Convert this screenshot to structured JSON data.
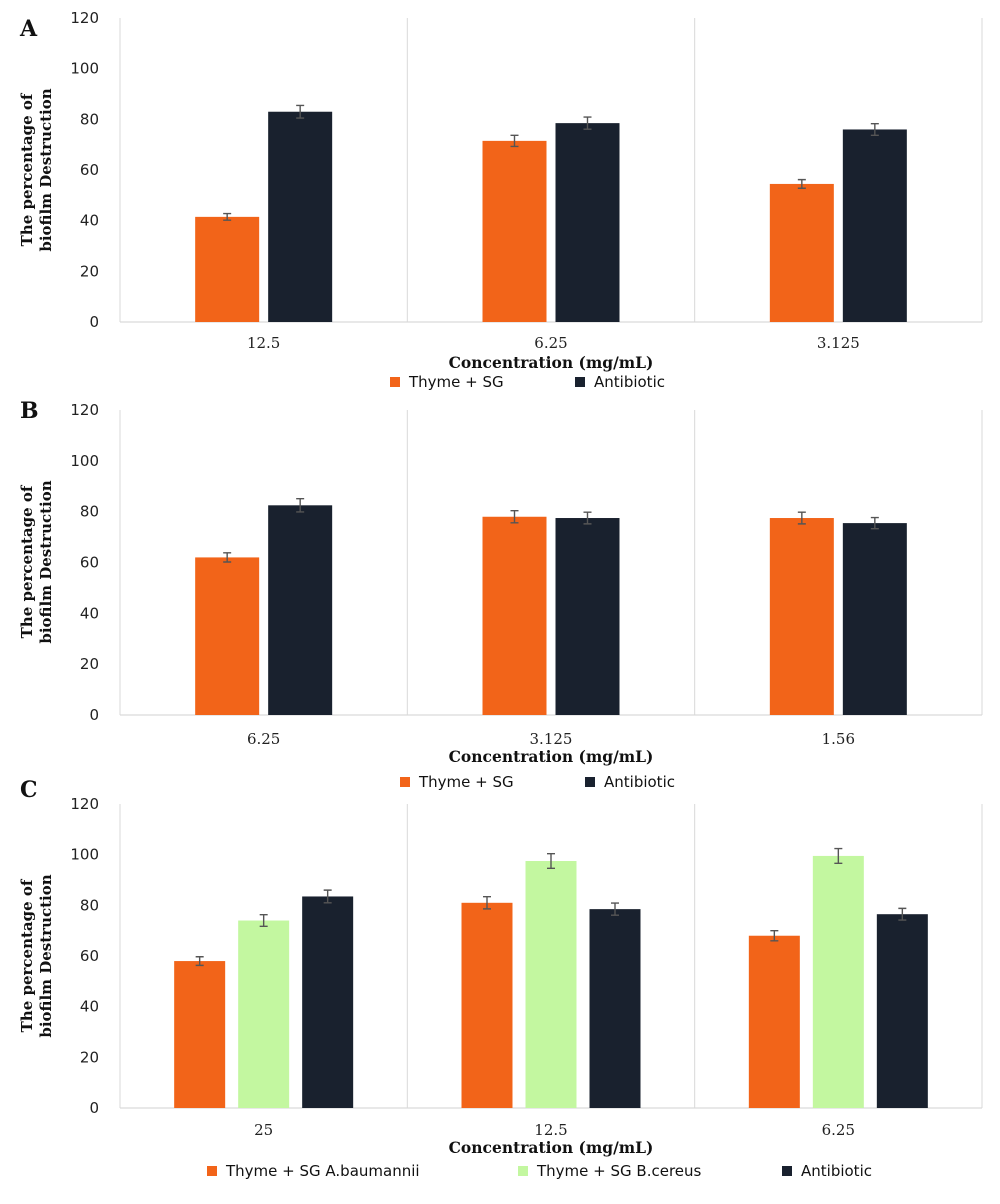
{
  "colors": {
    "thyme": "#f26419",
    "thyme_bcereus": "#c3f7a0",
    "antibiotic": "#19212e"
  },
  "chart_data": [
    {
      "type": "bar",
      "panel": "A",
      "categories": [
        "12.5",
        "6.25",
        "3.125"
      ],
      "xlabel": "Concentration (mg/mL)",
      "ylabel": [
        "The percentage of",
        "biofilm Destruction"
      ],
      "ylim": [
        0,
        120
      ],
      "yticks": [
        0,
        20,
        40,
        60,
        80,
        100,
        120
      ],
      "grid": "vertical category separators",
      "legend": "bottom",
      "series": [
        {
          "name": "Thyme + SG",
          "color": "#f26419",
          "values": [
            41.5,
            71.5,
            54.5
          ],
          "errors": [
            1.3,
            2.2,
            1.7
          ]
        },
        {
          "name": "Antibiotic",
          "color": "#19212e",
          "values": [
            83,
            78.5,
            76
          ],
          "errors": [
            2.5,
            2.4,
            2.3
          ]
        }
      ]
    },
    {
      "type": "bar",
      "panel": "B",
      "categories": [
        "6.25",
        "3.125",
        "1.56"
      ],
      "xlabel": "Concentration (mg/mL)",
      "ylabel": [
        "The percentage of",
        "biofilm Destruction"
      ],
      "ylim": [
        0,
        120
      ],
      "yticks": [
        0,
        20,
        40,
        60,
        80,
        100,
        120
      ],
      "grid": "vertical category separators",
      "legend": "bottom",
      "series": [
        {
          "name": "Thyme + SG",
          "color": "#f26419",
          "values": [
            62,
            78,
            77.5
          ],
          "errors": [
            1.8,
            2.4,
            2.3
          ]
        },
        {
          "name": "Antibiotic",
          "color": "#19212e",
          "values": [
            82.5,
            77.5,
            75.5
          ],
          "errors": [
            2.6,
            2.3,
            2.2
          ]
        }
      ]
    },
    {
      "type": "bar",
      "panel": "C",
      "categories": [
        "25",
        "12.5",
        "6.25"
      ],
      "xlabel": "Concentration (mg/mL)",
      "ylabel": [
        "The percentage of",
        "biofilm Destruction"
      ],
      "ylim": [
        0,
        120
      ],
      "yticks": [
        0,
        20,
        40,
        60,
        80,
        100,
        120
      ],
      "grid": "vertical category separators",
      "legend": "bottom",
      "series": [
        {
          "name": "Thyme + SG A.baumannii",
          "color": "#f26419",
          "values": [
            58,
            81,
            68
          ],
          "errors": [
            1.7,
            2.4,
            2.0
          ]
        },
        {
          "name": "Thyme + SG B.cereus",
          "color": "#c3f7a0",
          "values": [
            74,
            97.5,
            99.5
          ],
          "errors": [
            2.3,
            2.9,
            2.9
          ]
        },
        {
          "name": "Antibiotic",
          "color": "#19212e",
          "values": [
            83.5,
            78.5,
            76.5
          ],
          "errors": [
            2.5,
            2.4,
            2.3
          ]
        }
      ]
    }
  ]
}
